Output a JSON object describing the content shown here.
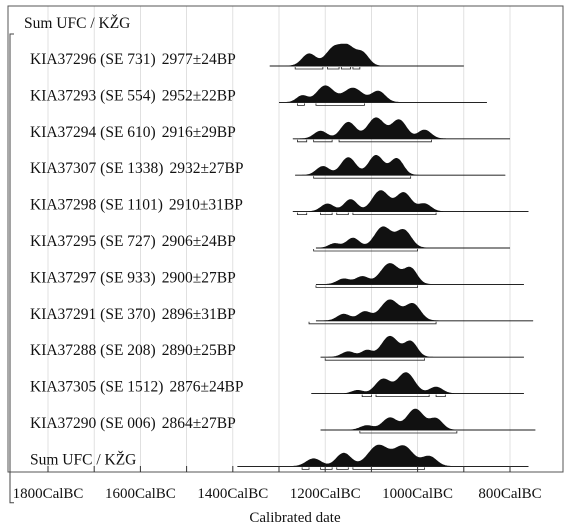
{
  "chart_data": {
    "type": "area",
    "title": "",
    "xlabel": "Calibrated date",
    "x_ticks": [
      {
        "value": -1800,
        "label": "1800CalBC"
      },
      {
        "value": -1600,
        "label": "1600CalBC"
      },
      {
        "value": -1400,
        "label": "1400CalBC"
      },
      {
        "value": -1200,
        "label": "1200CalBC"
      },
      {
        "value": -1000,
        "label": "1000CalBC"
      },
      {
        "value": -800,
        "label": "800CalBC"
      }
    ],
    "xlim": [
      -1820,
      -700
    ],
    "grid": true,
    "group_label": "Sum UFC / KŽG",
    "series": [
      {
        "name": "Sum UFC / KŽG",
        "label": "Sum UFC / KŽG",
        "bp": "",
        "line": [
          -1275,
          -960
        ],
        "peaks": [
          {
            "c": -1235,
            "w": 15,
            "h": 0.55
          },
          {
            "c": -1180,
            "w": 18,
            "h": 0.85
          },
          {
            "c": -1150,
            "w": 14,
            "h": 0.7
          },
          {
            "c": -1120,
            "w": 14,
            "h": 0.6
          }
        ],
        "ranges": [
          [
            -1265,
            -1205
          ],
          [
            -1195,
            -1170
          ],
          [
            -1165,
            -1145
          ],
          [
            -1140,
            -1125
          ]
        ]
      },
      {
        "name": "KIA37296 (SE 731)",
        "label": "KIA37296 (SE 731)",
        "bp": "2977±24BP",
        "line": [
          -1320,
          -900
        ],
        "peaks": [
          {
            "c": -1235,
            "w": 15,
            "h": 0.55
          },
          {
            "c": -1180,
            "w": 18,
            "h": 0.85
          },
          {
            "c": -1150,
            "w": 14,
            "h": 0.7
          },
          {
            "c": -1120,
            "w": 14,
            "h": 0.6
          }
        ],
        "ranges": [
          [
            -1265,
            -1205
          ],
          [
            -1195,
            -1170
          ],
          [
            -1165,
            -1145
          ],
          [
            -1140,
            -1125
          ]
        ]
      },
      {
        "name": "KIA37293 (SE 554)",
        "label": "KIA37293 (SE 554)",
        "bp": "2952±22BP",
        "line": [
          -1300,
          -850
        ],
        "peaks": [
          {
            "c": -1250,
            "w": 12,
            "h": 0.3
          },
          {
            "c": -1200,
            "w": 18,
            "h": 0.75
          },
          {
            "c": -1140,
            "w": 20,
            "h": 0.65
          },
          {
            "c": -1085,
            "w": 15,
            "h": 0.5
          }
        ],
        "ranges": [
          [
            -1260,
            -1245
          ],
          [
            -1220,
            -1115
          ]
        ]
      },
      {
        "name": "KIA37294 (SE 610)",
        "label": "KIA37294 (SE 610)",
        "bp": "2916±29BP",
        "line": [
          -1270,
          -800
        ],
        "peaks": [
          {
            "c": -1210,
            "w": 14,
            "h": 0.35
          },
          {
            "c": -1150,
            "w": 16,
            "h": 0.75
          },
          {
            "c": -1090,
            "w": 18,
            "h": 0.95
          },
          {
            "c": -1040,
            "w": 16,
            "h": 0.85
          },
          {
            "c": -985,
            "w": 14,
            "h": 0.4
          }
        ],
        "ranges": [
          [
            -1260,
            -1240
          ],
          [
            -1225,
            -1185
          ],
          [
            -1170,
            -970
          ]
        ]
      },
      {
        "name": "KIA37307 (SE 1338)",
        "label": "KIA37307 (SE 1338)",
        "bp": "2932±27BP",
        "line": [
          -1265,
          -810
        ],
        "peaks": [
          {
            "c": -1205,
            "w": 14,
            "h": 0.4
          },
          {
            "c": -1150,
            "w": 16,
            "h": 0.8
          },
          {
            "c": -1090,
            "w": 16,
            "h": 0.9
          },
          {
            "c": -1045,
            "w": 14,
            "h": 0.75
          }
        ],
        "ranges": [
          [
            -1225,
            -1015
          ]
        ]
      },
      {
        "name": "KIA37298 (SE 1101)",
        "label": "KIA37298 (SE 1101)",
        "bp": "2910±31BP",
        "line": [
          -1270,
          -760
        ],
        "peaks": [
          {
            "c": -1195,
            "w": 14,
            "h": 0.35
          },
          {
            "c": -1145,
            "w": 14,
            "h": 0.55
          },
          {
            "c": -1080,
            "w": 18,
            "h": 0.95
          },
          {
            "c": -1030,
            "w": 16,
            "h": 0.85
          },
          {
            "c": -985,
            "w": 14,
            "h": 0.35
          }
        ],
        "ranges": [
          [
            -1260,
            -1240
          ],
          [
            -1210,
            -1185
          ],
          [
            -1175,
            -1150
          ],
          [
            -1140,
            -960
          ]
        ]
      },
      {
        "name": "KIA37295 (SE 727)",
        "label": "KIA37295 (SE 727)",
        "bp": "2906±24BP",
        "line": [
          -1220,
          -800
        ],
        "peaks": [
          {
            "c": -1180,
            "w": 12,
            "h": 0.2
          },
          {
            "c": -1140,
            "w": 14,
            "h": 0.45
          },
          {
            "c": -1075,
            "w": 18,
            "h": 0.95
          },
          {
            "c": -1030,
            "w": 16,
            "h": 0.8
          }
        ],
        "ranges": [
          [
            -1225,
            -1000
          ]
        ]
      },
      {
        "name": "KIA37297 (SE 933)",
        "label": "KIA37297 (SE 933)",
        "bp": "2900±27BP",
        "line": [
          -1220,
          -770
        ],
        "peaks": [
          {
            "c": -1160,
            "w": 14,
            "h": 0.25
          },
          {
            "c": -1120,
            "w": 14,
            "h": 0.35
          },
          {
            "c": -1060,
            "w": 20,
            "h": 0.95
          },
          {
            "c": -1015,
            "w": 14,
            "h": 0.7
          }
        ],
        "ranges": [
          [
            -1220,
            -1000
          ]
        ]
      },
      {
        "name": "KIA37291 (SE 370)",
        "label": "KIA37291 (SE 370)",
        "bp": "2896±31BP",
        "line": [
          -1220,
          -750
        ],
        "peaks": [
          {
            "c": -1160,
            "w": 14,
            "h": 0.3
          },
          {
            "c": -1115,
            "w": 14,
            "h": 0.4
          },
          {
            "c": -1060,
            "w": 20,
            "h": 0.95
          },
          {
            "c": -1010,
            "w": 16,
            "h": 0.75
          }
        ],
        "ranges": [
          [
            -1235,
            -960
          ]
        ]
      },
      {
        "name": "KIA37288 (SE 208)",
        "label": "KIA37288 (SE 208)",
        "bp": "2890±25BP",
        "line": [
          -1210,
          -770
        ],
        "peaks": [
          {
            "c": -1150,
            "w": 14,
            "h": 0.25
          },
          {
            "c": -1110,
            "w": 12,
            "h": 0.3
          },
          {
            "c": -1060,
            "w": 18,
            "h": 0.95
          },
          {
            "c": -1015,
            "w": 14,
            "h": 0.7
          }
        ],
        "ranges": [
          [
            -1200,
            -985
          ]
        ]
      },
      {
        "name": "KIA37305 (SE 1512)",
        "label": "KIA37305 (SE 1512)",
        "bp": "2876±24BP",
        "line": [
          -1230,
          -770
        ],
        "peaks": [
          {
            "c": -1130,
            "w": 12,
            "h": 0.15
          },
          {
            "c": -1075,
            "w": 16,
            "h": 0.65
          },
          {
            "c": -1025,
            "w": 18,
            "h": 0.95
          },
          {
            "c": -960,
            "w": 14,
            "h": 0.3
          }
        ],
        "ranges": [
          [
            -1120,
            -1100
          ],
          [
            -1090,
            -975
          ],
          [
            -960,
            -940
          ]
        ]
      },
      {
        "name": "KIA37290 (SE 006)",
        "label": "KIA37290 (SE 006)",
        "bp": "2864±27BP",
        "line": [
          -1210,
          -745
        ],
        "peaks": [
          {
            "c": -1110,
            "w": 14,
            "h": 0.2
          },
          {
            "c": -1060,
            "w": 16,
            "h": 0.55
          },
          {
            "c": -1005,
            "w": 18,
            "h": 0.95
          },
          {
            "c": -960,
            "w": 14,
            "h": 0.5
          }
        ],
        "ranges": [
          [
            -1125,
            -915
          ]
        ]
      },
      {
        "name": "Sum UFC / KŽG",
        "label": "Sum UFC / KŽG",
        "bp": "",
        "line": [
          -1390,
          -760
        ],
        "peaks": [
          {
            "c": -1225,
            "w": 16,
            "h": 0.35
          },
          {
            "c": -1160,
            "w": 16,
            "h": 0.6
          },
          {
            "c": -1085,
            "w": 22,
            "h": 0.95
          },
          {
            "c": -1030,
            "w": 20,
            "h": 0.9
          },
          {
            "c": -975,
            "w": 16,
            "h": 0.45
          }
        ],
        "ranges": [
          [
            -1250,
            -1235
          ],
          [
            -1210,
            -1185
          ],
          [
            -1175,
            -1150
          ],
          [
            -1140,
            -985
          ]
        ]
      }
    ]
  },
  "top_partial_text": "                     "
}
